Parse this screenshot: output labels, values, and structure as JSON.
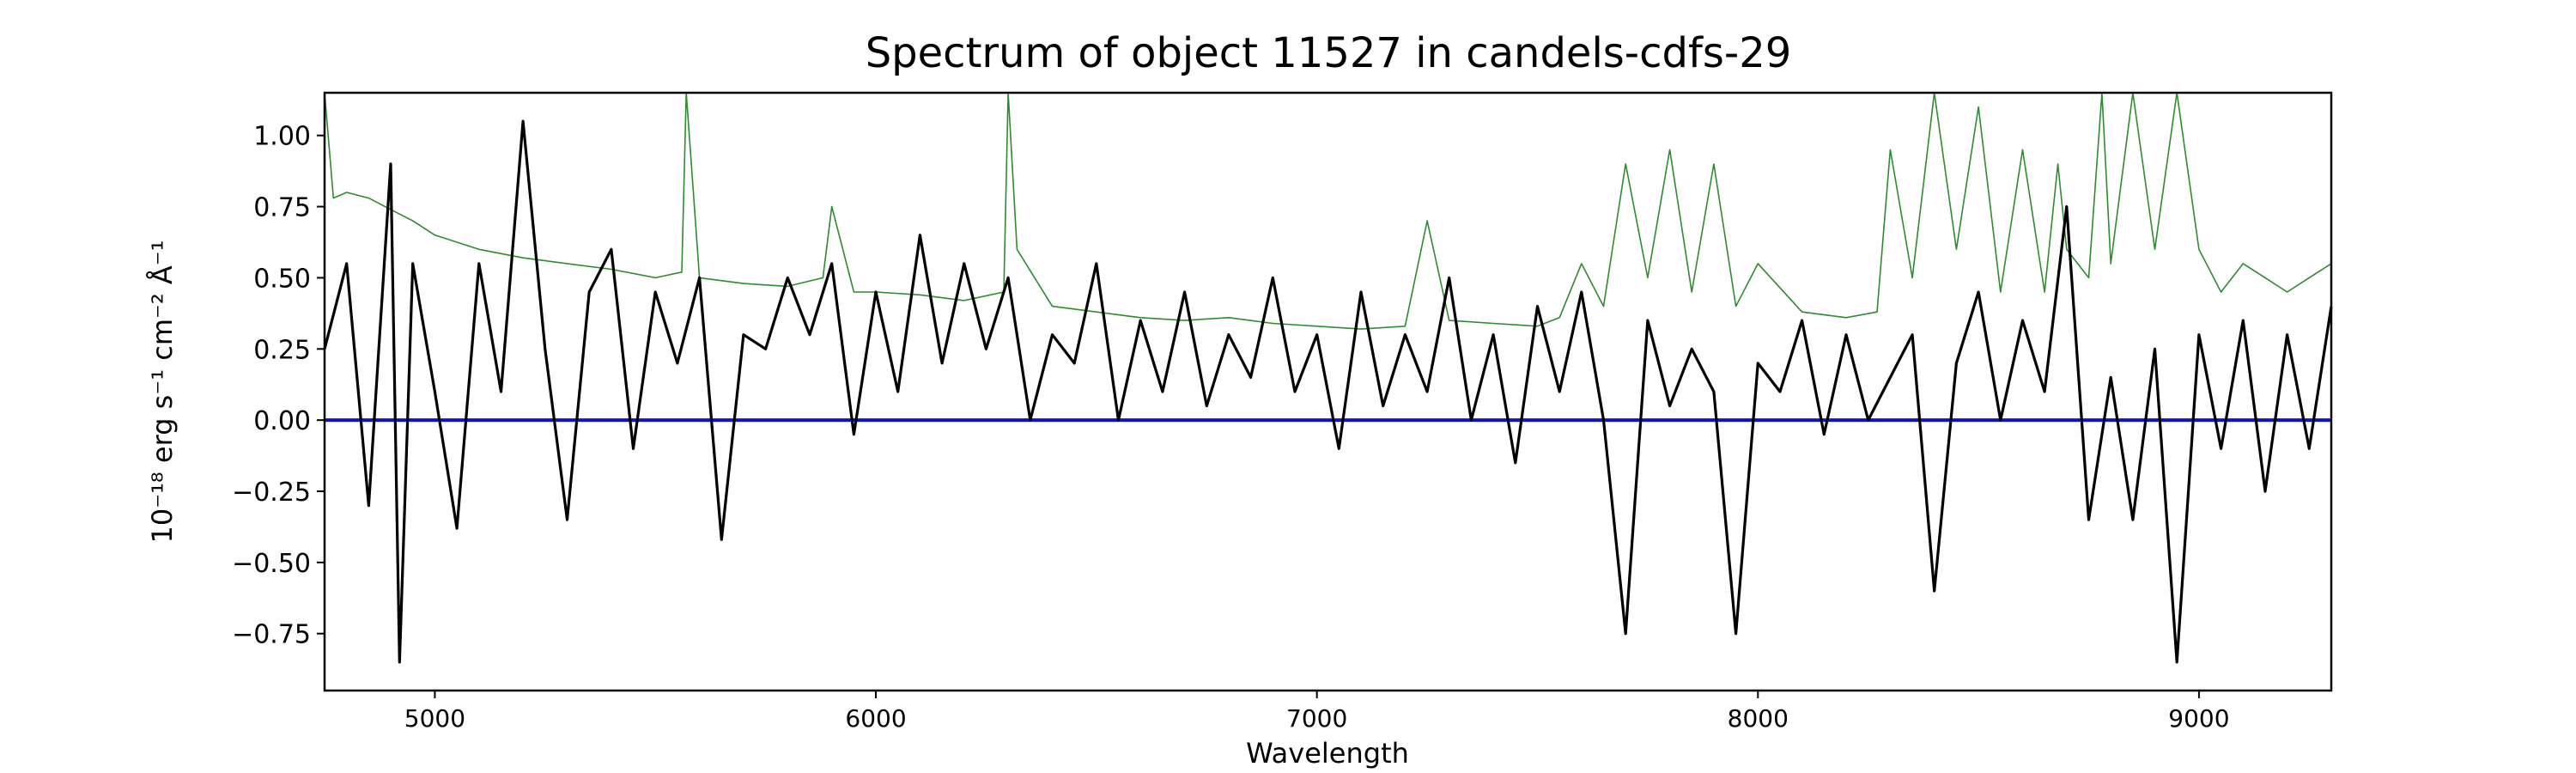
{
  "chart_data": {
    "type": "line",
    "title": "Spectrum of object 11527 in candels-cdfs-29",
    "xlabel": "Wavelength",
    "ylabel": "10⁻¹⁸ erg s⁻¹ cm⁻² Å⁻¹",
    "xlim": [
      4750,
      9300
    ],
    "ylim": [
      -0.95,
      1.15
    ],
    "x_ticks": [
      5000,
      6000,
      7000,
      8000,
      9000
    ],
    "y_ticks": [
      -0.75,
      -0.5,
      -0.25,
      0.0,
      0.25,
      0.5,
      0.75,
      1.0
    ],
    "y_tick_labels": [
      "−0.75",
      "−0.50",
      "−0.25",
      "0.00",
      "0.25",
      "0.50",
      "0.75",
      "1.00"
    ],
    "grid": false,
    "series": [
      {
        "role": "flux",
        "color": "#000000",
        "x": [
          4750,
          4800,
          4850,
          4900,
          4920,
          4950,
          5000,
          5050,
          5100,
          5150,
          5200,
          5250,
          5300,
          5350,
          5400,
          5450,
          5500,
          5550,
          5600,
          5650,
          5700,
          5750,
          5800,
          5850,
          5900,
          5950,
          6000,
          6050,
          6100,
          6150,
          6200,
          6250,
          6300,
          6350,
          6400,
          6450,
          6500,
          6550,
          6600,
          6650,
          6700,
          6750,
          6800,
          6850,
          6900,
          6950,
          7000,
          7050,
          7100,
          7150,
          7200,
          7250,
          7300,
          7350,
          7400,
          7450,
          7500,
          7550,
          7600,
          7650,
          7700,
          7750,
          7800,
          7850,
          7900,
          7950,
          8000,
          8050,
          8100,
          8150,
          8200,
          8250,
          8300,
          8350,
          8400,
          8450,
          8500,
          8550,
          8600,
          8650,
          8700,
          8750,
          8800,
          8850,
          8900,
          8950,
          9000,
          9050,
          9100,
          9150,
          9200,
          9250,
          9300
        ],
        "y": [
          0.25,
          0.55,
          -0.3,
          0.9,
          -0.85,
          0.55,
          0.1,
          -0.38,
          0.55,
          0.1,
          1.05,
          0.25,
          -0.35,
          0.45,
          0.6,
          -0.1,
          0.45,
          0.2,
          0.5,
          -0.42,
          0.3,
          0.25,
          0.5,
          0.3,
          0.55,
          -0.05,
          0.45,
          0.1,
          0.65,
          0.2,
          0.55,
          0.25,
          0.5,
          0.0,
          0.3,
          0.2,
          0.55,
          0.0,
          0.35,
          0.1,
          0.45,
          0.05,
          0.3,
          0.15,
          0.5,
          0.1,
          0.3,
          -0.1,
          0.45,
          0.05,
          0.3,
          0.1,
          0.5,
          0.0,
          0.3,
          -0.15,
          0.4,
          0.1,
          0.45,
          0.0,
          -0.75,
          0.35,
          0.05,
          0.25,
          0.1,
          -0.75,
          0.2,
          0.1,
          0.35,
          -0.05,
          0.3,
          0.0,
          0.15,
          0.3,
          -0.6,
          0.2,
          0.45,
          0.0,
          0.35,
          0.1,
          0.75,
          -0.35,
          0.15,
          -0.35,
          0.25,
          -0.85,
          0.3,
          -0.1,
          0.35,
          -0.25,
          0.3,
          -0.1,
          0.4
        ]
      },
      {
        "role": "error",
        "color": "#2e8b2e",
        "x": [
          4750,
          4770,
          4800,
          4850,
          4900,
          4950,
          5000,
          5100,
          5200,
          5300,
          5400,
          5500,
          5560,
          5570,
          5600,
          5700,
          5800,
          5880,
          5900,
          5950,
          6000,
          6100,
          6200,
          6290,
          6300,
          6320,
          6400,
          6500,
          6600,
          6700,
          6800,
          6900,
          7000,
          7100,
          7200,
          7250,
          7300,
          7400,
          7500,
          7550,
          7600,
          7650,
          7700,
          7750,
          7800,
          7850,
          7900,
          7950,
          8000,
          8100,
          8200,
          8270,
          8300,
          8350,
          8400,
          8450,
          8500,
          8550,
          8600,
          8650,
          8680,
          8700,
          8750,
          8780,
          8800,
          8850,
          8900,
          8950,
          9000,
          9050,
          9100,
          9150,
          9200,
          9250,
          9300
        ],
        "y": [
          1.15,
          0.78,
          0.8,
          0.78,
          0.74,
          0.7,
          0.65,
          0.6,
          0.57,
          0.55,
          0.53,
          0.5,
          0.52,
          1.15,
          0.5,
          0.48,
          0.47,
          0.5,
          0.75,
          0.45,
          0.45,
          0.44,
          0.42,
          0.45,
          1.15,
          0.6,
          0.4,
          0.38,
          0.36,
          0.35,
          0.36,
          0.34,
          0.33,
          0.32,
          0.33,
          0.7,
          0.35,
          0.34,
          0.33,
          0.36,
          0.55,
          0.4,
          0.9,
          0.5,
          0.95,
          0.45,
          0.9,
          0.4,
          0.55,
          0.38,
          0.36,
          0.38,
          0.95,
          0.5,
          1.15,
          0.6,
          1.1,
          0.45,
          0.95,
          0.45,
          0.9,
          0.6,
          0.5,
          1.15,
          0.55,
          1.15,
          0.6,
          1.15,
          0.6,
          0.45,
          0.55,
          0.5,
          0.45,
          0.5,
          0.55
        ]
      },
      {
        "role": "zero",
        "color": "#1010d0",
        "x": [
          4750,
          9300
        ],
        "y": [
          0,
          0
        ]
      }
    ]
  }
}
